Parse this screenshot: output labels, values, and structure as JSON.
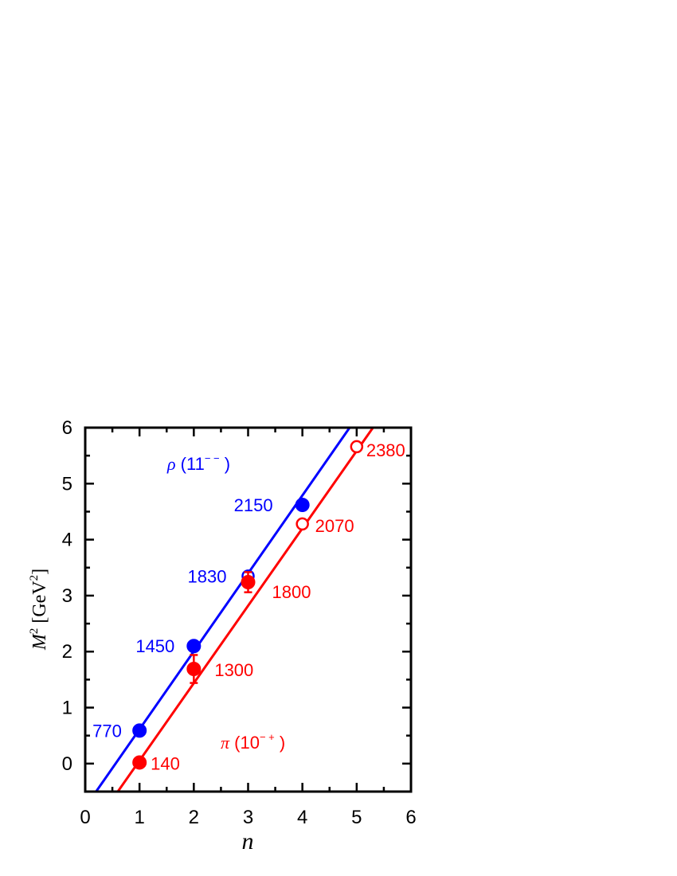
{
  "chart_data": {
    "type": "scatter",
    "title": "",
    "xlabel": "n",
    "ylabel": {
      "symbol": "M",
      "sup": "2",
      "unit_open": " [GeV",
      "unit_sup": "2",
      "unit_close": "]"
    },
    "xlim": [
      0,
      6
    ],
    "ylim": [
      -0.5,
      6
    ],
    "xticks": [
      "0",
      "1",
      "2",
      "3",
      "4",
      "5",
      "6"
    ],
    "yticks": [
      "0",
      "1",
      "2",
      "3",
      "4",
      "5",
      "6"
    ],
    "grid": false,
    "series": [
      {
        "name": "ρ(11⁻⁻)",
        "label": {
          "greek": "ρ",
          "text": " (11",
          "sup": "− −",
          "close": " )"
        },
        "color": "#0000ff",
        "fit_line": {
          "x": [
            0.2,
            4.87
          ],
          "y": [
            -0.5,
            6.0
          ]
        },
        "points": [
          {
            "x": 1,
            "y": 0.59,
            "label": "770",
            "filled": true
          },
          {
            "x": 2,
            "y": 2.1,
            "label": "1450",
            "filled": true
          },
          {
            "x": 3,
            "y": 3.35,
            "label": "1830",
            "filled": false
          },
          {
            "x": 4,
            "y": 4.62,
            "label": "2150",
            "filled": true
          }
        ]
      },
      {
        "name": "π(10⁻⁺)",
        "label": {
          "greek": "π",
          "text": " (10",
          "sup": "− +",
          "close": " )"
        },
        "color": "#ff0000",
        "fit_line": {
          "x": [
            0.6,
            5.3
          ],
          "y": [
            -0.5,
            6.0
          ]
        },
        "points": [
          {
            "x": 1,
            "y": 0.02,
            "label": "140",
            "filled": true
          },
          {
            "x": 2,
            "y": 1.69,
            "label": "1300",
            "filled": true,
            "err": 0.25
          },
          {
            "x": 3,
            "y": 3.24,
            "label": "1800",
            "filled": true,
            "err": 0.18
          },
          {
            "x": 4,
            "y": 4.28,
            "label": "2070",
            "filled": false
          },
          {
            "x": 5,
            "y": 5.66,
            "label": "2380",
            "filled": false
          }
        ]
      }
    ]
  }
}
